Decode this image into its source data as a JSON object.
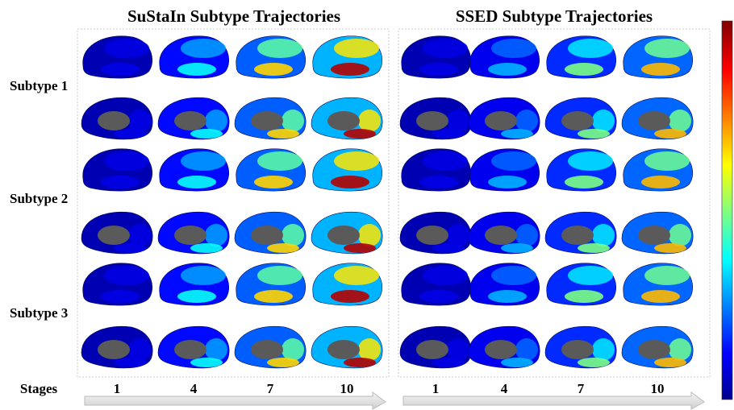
{
  "panels": [
    {
      "title": "SuStaIn Subtype Trajectories"
    },
    {
      "title": "SSED Subtype Trajectories"
    }
  ],
  "row_labels": [
    "Subtype 1",
    "Subtype 2",
    "Subtype 3"
  ],
  "stages_label": "Stages",
  "stages": [
    1,
    4,
    7,
    10
  ]
}
